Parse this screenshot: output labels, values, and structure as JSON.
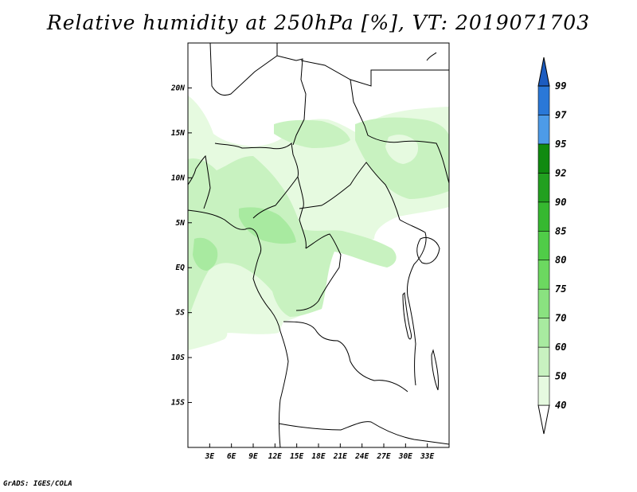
{
  "title": "Relative humidity at 250hPa [%], VT: 2019071703",
  "credit": "GrADS: IGES/COLA",
  "map": {
    "lon_range": [
      0,
      36
    ],
    "lat_range": [
      -20,
      25
    ],
    "x_ticks": [
      {
        "lon": 3,
        "label": "3E"
      },
      {
        "lon": 6,
        "label": "6E"
      },
      {
        "lon": 9,
        "label": "9E"
      },
      {
        "lon": 12,
        "label": "12E"
      },
      {
        "lon": 15,
        "label": "15E"
      },
      {
        "lon": 18,
        "label": "18E"
      },
      {
        "lon": 21,
        "label": "21E"
      },
      {
        "lon": 24,
        "label": "24E"
      },
      {
        "lon": 27,
        "label": "27E"
      },
      {
        "lon": 30,
        "label": "30E"
      },
      {
        "lon": 33,
        "label": "33E"
      }
    ],
    "y_ticks": [
      {
        "lat": 20,
        "label": "20N"
      },
      {
        "lat": 15,
        "label": "15N"
      },
      {
        "lat": 10,
        "label": "10N"
      },
      {
        "lat": 5,
        "label": "5N"
      },
      {
        "lat": 0,
        "label": "EQ"
      },
      {
        "lat": -5,
        "label": "5S"
      },
      {
        "lat": -10,
        "label": "10S"
      },
      {
        "lat": -15,
        "label": "15S"
      }
    ]
  },
  "colorbar": {
    "levels": [
      "40",
      "50",
      "60",
      "70",
      "75",
      "80",
      "85",
      "90",
      "92",
      "95",
      "97",
      "99"
    ],
    "colors": [
      "#ffffff",
      "#e6fae0",
      "#c8f2c0",
      "#a8eaa0",
      "#8ae280",
      "#6cd860",
      "#50cc48",
      "#36b830",
      "#22a020",
      "#108a10",
      "#4d9be8",
      "#2a78d8",
      "#1c5cc0"
    ]
  },
  "colors": {
    "land_outline": "#000000",
    "humid_light": "#e6fae0",
    "humid_mid": "#c8f2c0",
    "humid_strong": "#a8eaa0"
  }
}
